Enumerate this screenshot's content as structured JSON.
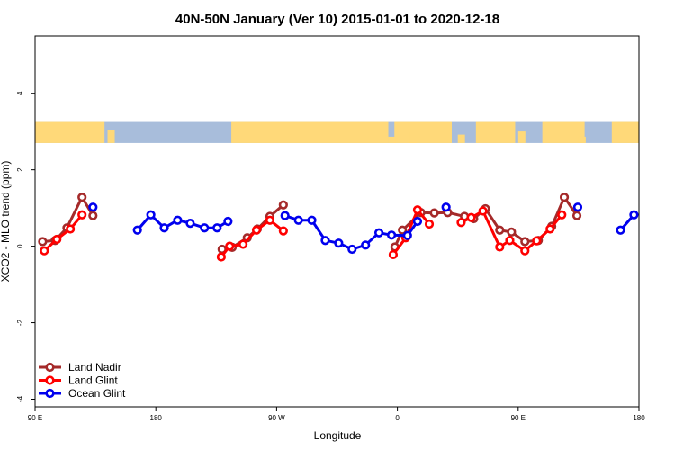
{
  "chart_data": {
    "type": "line",
    "title": "40N-50N January (Ver 10)   2015-01-01 to 2020-12-18",
    "xlabel": "Longitude",
    "ylabel": "XCO2 - MLO trend (ppm)",
    "xlim": [
      90,
      450
    ],
    "ylim": [
      -4.2,
      5.5
    ],
    "x_ticks": [
      {
        "value": 90,
        "label": "90 E"
      },
      {
        "value": 162,
        "label": "180"
      },
      {
        "value": 234,
        "label": "90 W"
      },
      {
        "value": 306,
        "label": "0"
      },
      {
        "value": 378,
        "label": "90 E"
      },
      {
        "value": 450,
        "label": "180"
      }
    ],
    "y_ticks": [
      {
        "value": 4,
        "label": "4"
      },
      {
        "value": 2,
        "label": "2"
      },
      {
        "value": 0,
        "label": "0"
      },
      {
        "value": -2,
        "label": "-2"
      },
      {
        "value": -4,
        "label": "-4"
      }
    ],
    "map_strip": {
      "y_bottom": 2.7,
      "y_top": 3.25,
      "land_color": "#ffd979",
      "ocean_color": "#a8bddb"
    },
    "legend_position": "bottom-left",
    "series": [
      {
        "name": "Land Nadir",
        "color": "#a52a2a",
        "segments": [
          [
            [
              94.5,
              0.12
            ],
            [
              102,
              0.15
            ],
            [
              109,
              0.48
            ],
            [
              118,
              1.28
            ],
            [
              124.5,
              0.8
            ]
          ],
          [
            [
              201.5,
              -0.08
            ],
            [
              207.5,
              -0.03
            ],
            [
              216.5,
              0.22
            ],
            [
              222.5,
              0.45
            ],
            [
              230,
              0.78
            ],
            [
              238,
              1.08
            ]
          ],
          [
            [
              304.5,
              -0.02
            ],
            [
              309,
              0.42
            ],
            [
              320,
              0.88
            ],
            [
              328,
              0.87
            ],
            [
              336,
              0.88
            ],
            [
              346,
              0.78
            ],
            [
              351.5,
              0.72
            ],
            [
              358.5,
              0.98
            ],
            [
              367,
              0.42
            ],
            [
              374,
              0.37
            ],
            [
              382,
              0.12
            ],
            [
              390,
              0.15
            ],
            [
              398,
              0.52
            ],
            [
              405.5,
              1.28
            ],
            [
              413,
              0.8
            ]
          ]
        ]
      },
      {
        "name": "Land Glint",
        "color": "#ff0000",
        "segments": [
          [
            [
              95.5,
              -0.12
            ],
            [
              103,
              0.18
            ],
            [
              111,
              0.45
            ],
            [
              118,
              0.82
            ]
          ],
          [
            [
              201,
              -0.28
            ],
            [
              206,
              0.0
            ],
            [
              214,
              0.05
            ],
            [
              222,
              0.42
            ],
            [
              230,
              0.68
            ],
            [
              238,
              0.4
            ]
          ],
          [
            [
              303.5,
              -0.22
            ],
            [
              311,
              0.22
            ],
            [
              318,
              0.95
            ],
            [
              325,
              0.58
            ]
          ],
          [
            [
              344,
              0.62
            ],
            [
              350,
              0.75
            ],
            [
              357,
              0.92
            ],
            [
              367,
              -0.02
            ],
            [
              373,
              0.15
            ],
            [
              382,
              -0.12
            ],
            [
              389,
              0.14
            ],
            [
              397,
              0.45
            ],
            [
              404,
              0.82
            ]
          ]
        ]
      },
      {
        "name": "Ocean Glint",
        "color": "#0000ee",
        "segments": [
          [
            [
              124.5,
              1.02
            ]
          ],
          [
            [
              151,
              0.42
            ],
            [
              159,
              0.82
            ],
            [
              167,
              0.48
            ],
            [
              175,
              0.68
            ],
            [
              182.5,
              0.6
            ],
            [
              191,
              0.48
            ],
            [
              198.5,
              0.48
            ],
            [
              205,
              0.65
            ]
          ],
          [
            [
              239,
              0.8
            ],
            [
              247,
              0.68
            ],
            [
              255,
              0.68
            ],
            [
              263,
              0.15
            ],
            [
              271,
              0.08
            ],
            [
              279,
              -0.08
            ],
            [
              287,
              0.03
            ],
            [
              295,
              0.35
            ],
            [
              302.5,
              0.29
            ],
            [
              312,
              0.28
            ],
            [
              318,
              0.65
            ]
          ],
          [
            [
              335,
              1.02
            ]
          ],
          [
            [
              413.5,
              1.02
            ]
          ],
          [
            [
              439,
              0.42
            ],
            [
              447,
              0.82
            ]
          ]
        ]
      }
    ]
  }
}
